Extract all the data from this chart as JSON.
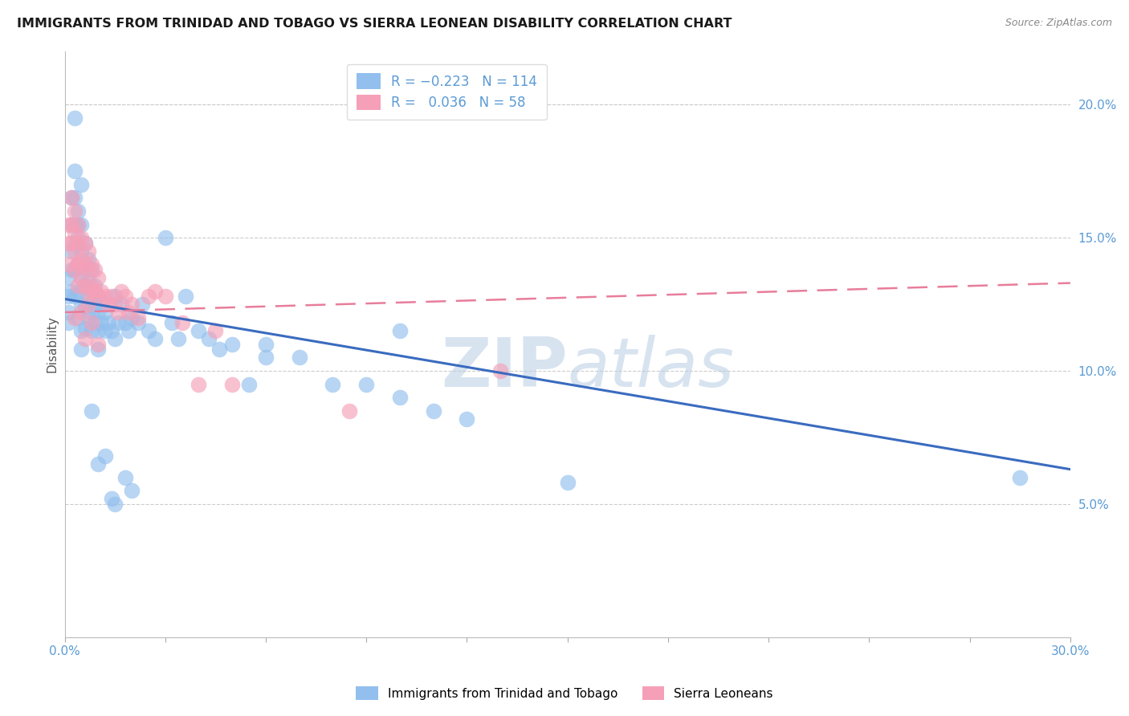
{
  "title": "IMMIGRANTS FROM TRINIDAD AND TOBAGO VS SIERRA LEONEAN DISABILITY CORRELATION CHART",
  "source": "Source: ZipAtlas.com",
  "ylabel": "Disability",
  "xlim": [
    0,
    0.3
  ],
  "ylim": [
    0,
    0.22
  ],
  "xtick_positions": [
    0.0,
    0.03,
    0.06,
    0.09,
    0.12,
    0.15,
    0.18,
    0.21,
    0.24,
    0.27,
    0.3
  ],
  "xtick_labels": [
    "0.0%",
    "",
    "",
    "",
    "",
    "",
    "",
    "",
    "",
    "",
    "30.0%"
  ],
  "ytick_positions": [
    0.05,
    0.1,
    0.15,
    0.2
  ],
  "ytick_labels": [
    "5.0%",
    "10.0%",
    "15.0%",
    "20.0%"
  ],
  "blue_R": -0.223,
  "blue_N": 114,
  "pink_R": 0.036,
  "pink_N": 58,
  "blue_color": "#92BFED",
  "pink_color": "#F5A0B8",
  "blue_line_color": "#3A6BBF",
  "pink_line_color": "#E87D9B",
  "watermark_zip": "ZIP",
  "watermark_atlas": "atlas",
  "legend_label_blue": "Immigrants from Trinidad and Tobago",
  "legend_label_pink": "Sierra Leoneans",
  "blue_line_x0": 0.0,
  "blue_line_y0": 0.127,
  "blue_line_x1": 0.3,
  "blue_line_y1": 0.063,
  "pink_line_x0": 0.0,
  "pink_line_y0": 0.122,
  "pink_line_x1": 0.3,
  "pink_line_y1": 0.133,
  "blue_scatter_x": [
    0.001,
    0.001,
    0.001,
    0.001,
    0.002,
    0.002,
    0.002,
    0.002,
    0.002,
    0.003,
    0.003,
    0.003,
    0.003,
    0.003,
    0.003,
    0.004,
    0.004,
    0.004,
    0.004,
    0.004,
    0.005,
    0.005,
    0.005,
    0.005,
    0.005,
    0.005,
    0.006,
    0.006,
    0.006,
    0.006,
    0.006,
    0.007,
    0.007,
    0.007,
    0.007,
    0.008,
    0.008,
    0.008,
    0.008,
    0.009,
    0.009,
    0.009,
    0.01,
    0.01,
    0.01,
    0.01,
    0.011,
    0.011,
    0.012,
    0.012,
    0.013,
    0.014,
    0.015,
    0.015,
    0.016,
    0.017,
    0.018,
    0.019,
    0.02,
    0.022,
    0.023,
    0.025,
    0.027,
    0.03,
    0.032,
    0.034,
    0.036,
    0.04,
    0.043,
    0.046,
    0.05,
    0.055,
    0.06,
    0.07,
    0.08,
    0.09,
    0.1,
    0.11,
    0.12,
    0.015,
    0.018,
    0.02,
    0.003,
    0.004,
    0.005,
    0.285,
    0.15,
    0.008,
    0.01,
    0.012,
    0.014,
    0.06,
    0.1
  ],
  "blue_scatter_y": [
    0.135,
    0.128,
    0.122,
    0.118,
    0.165,
    0.155,
    0.145,
    0.138,
    0.13,
    0.175,
    0.165,
    0.155,
    0.148,
    0.138,
    0.128,
    0.16,
    0.15,
    0.14,
    0.13,
    0.12,
    0.155,
    0.145,
    0.135,
    0.125,
    0.115,
    0.108,
    0.148,
    0.14,
    0.132,
    0.124,
    0.116,
    0.142,
    0.135,
    0.128,
    0.12,
    0.138,
    0.13,
    0.122,
    0.115,
    0.132,
    0.125,
    0.118,
    0.128,
    0.122,
    0.115,
    0.108,
    0.125,
    0.118,
    0.122,
    0.115,
    0.118,
    0.115,
    0.128,
    0.112,
    0.118,
    0.125,
    0.118,
    0.115,
    0.12,
    0.118,
    0.125,
    0.115,
    0.112,
    0.15,
    0.118,
    0.112,
    0.128,
    0.115,
    0.112,
    0.108,
    0.11,
    0.095,
    0.105,
    0.105,
    0.095,
    0.095,
    0.09,
    0.085,
    0.082,
    0.05,
    0.06,
    0.055,
    0.195,
    0.155,
    0.17,
    0.06,
    0.058,
    0.085,
    0.065,
    0.068,
    0.052,
    0.11,
    0.115
  ],
  "pink_scatter_x": [
    0.001,
    0.001,
    0.001,
    0.002,
    0.002,
    0.002,
    0.003,
    0.003,
    0.003,
    0.003,
    0.004,
    0.004,
    0.004,
    0.004,
    0.005,
    0.005,
    0.005,
    0.006,
    0.006,
    0.006,
    0.007,
    0.007,
    0.007,
    0.008,
    0.008,
    0.009,
    0.009,
    0.01,
    0.01,
    0.011,
    0.012,
    0.013,
    0.014,
    0.015,
    0.016,
    0.017,
    0.018,
    0.019,
    0.02,
    0.022,
    0.025,
    0.027,
    0.03,
    0.035,
    0.04,
    0.045,
    0.05,
    0.085,
    0.13,
    0.003,
    0.004,
    0.005,
    0.006,
    0.007,
    0.008,
    0.009,
    0.01
  ],
  "pink_scatter_y": [
    0.155,
    0.148,
    0.14,
    0.165,
    0.155,
    0.148,
    0.16,
    0.152,
    0.145,
    0.138,
    0.155,
    0.148,
    0.14,
    0.132,
    0.15,
    0.142,
    0.135,
    0.148,
    0.14,
    0.132,
    0.145,
    0.138,
    0.13,
    0.14,
    0.132,
    0.138,
    0.13,
    0.135,
    0.128,
    0.13,
    0.128,
    0.125,
    0.128,
    0.125,
    0.122,
    0.13,
    0.128,
    0.122,
    0.125,
    0.12,
    0.128,
    0.13,
    0.128,
    0.118,
    0.095,
    0.115,
    0.095,
    0.085,
    0.1,
    0.12,
    0.14,
    0.122,
    0.112,
    0.125,
    0.118,
    0.13,
    0.11
  ]
}
